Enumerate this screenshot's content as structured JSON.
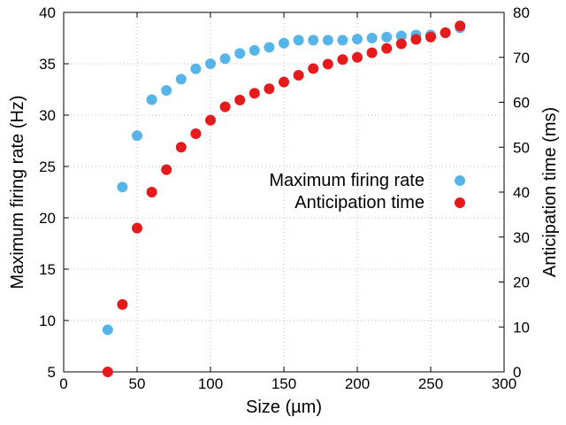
{
  "chart_data": {
    "type": "scatter",
    "xlabel": "Size (µm)",
    "ylabel": "Maximum firing rate (Hz)",
    "y2label": "Anticipation time (ms)",
    "xlim": [
      0,
      300
    ],
    "ylim": [
      5,
      40
    ],
    "y2lim": [
      0,
      80
    ],
    "xticks": [
      0,
      50,
      100,
      150,
      200,
      250,
      300
    ],
    "yticks": [
      5,
      10,
      15,
      20,
      25,
      30,
      35,
      40
    ],
    "y2ticks": [
      0,
      10,
      20,
      30,
      40,
      50,
      60,
      70,
      80
    ],
    "grid": true,
    "legend_position": "center-right",
    "series": [
      {
        "name": "Maximum firing rate",
        "axis": "left",
        "color": "#56b4e9",
        "x": [
          30,
          40,
          50,
          60,
          70,
          80,
          90,
          100,
          110,
          120,
          130,
          140,
          150,
          160,
          170,
          180,
          190,
          200,
          210,
          220,
          230,
          240,
          250,
          260,
          270
        ],
        "y": [
          9.1,
          23.0,
          28.0,
          31.5,
          32.4,
          33.5,
          34.5,
          35.0,
          35.5,
          36.0,
          36.3,
          36.6,
          37.0,
          37.3,
          37.3,
          37.3,
          37.3,
          37.4,
          37.5,
          37.6,
          37.7,
          37.8,
          37.8,
          38.0,
          38.5
        ]
      },
      {
        "name": "Anticipation time",
        "axis": "right",
        "color": "#e41a1c",
        "x": [
          30,
          40,
          50,
          60,
          70,
          80,
          90,
          100,
          110,
          120,
          130,
          140,
          150,
          160,
          170,
          180,
          190,
          200,
          210,
          220,
          230,
          240,
          250,
          260,
          270
        ],
        "y": [
          0,
          15,
          32,
          40,
          45,
          50,
          53,
          56,
          59,
          60.5,
          62,
          63,
          64.5,
          66,
          67.5,
          68.5,
          69.5,
          70,
          71,
          72,
          73,
          74,
          74.5,
          75.5,
          77
        ]
      }
    ]
  }
}
